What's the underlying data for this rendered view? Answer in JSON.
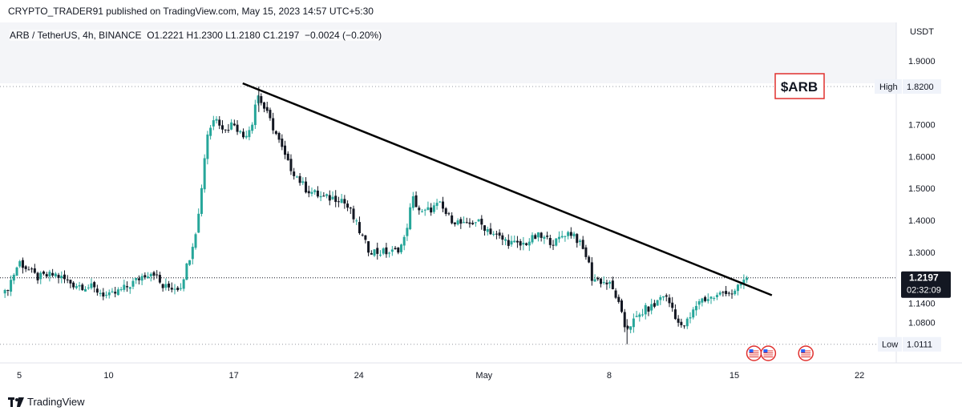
{
  "header": {
    "published_text": "CRYPTO_TRADER91 published on TradingView.com, May 15, 2023 14:57 UTC+5:30"
  },
  "symbol": {
    "pair": "ARB / TetherUS, 4h, BINANCE",
    "ohlc": "O1.2221  H1.2300  L1.2180  C1.2197",
    "change": "−0.0024 (−0.20%)"
  },
  "annotation": {
    "ticker_label": "$ARB",
    "color": "#e0302e"
  },
  "axis": {
    "currency": "USDT",
    "high_label": "High",
    "low_label": "Low"
  },
  "footer": {
    "logo_text": "TradingView",
    "logo_icon": "tradingview-logo-icon"
  },
  "chart_data": {
    "type": "candlestick",
    "timeframe": "4h",
    "ylim": [
      1.0,
      1.9
    ],
    "y_ticks": [
      {
        "value": 1.9,
        "label": "1.9000"
      },
      {
        "value": 1.7,
        "label": "1.7000"
      },
      {
        "value": 1.6,
        "label": "1.6000"
      },
      {
        "value": 1.5,
        "label": "1.5000"
      },
      {
        "value": 1.4,
        "label": "1.4000"
      },
      {
        "value": 1.3,
        "label": "1.3000"
      },
      {
        "value": 1.14,
        "label": "1.1400"
      },
      {
        "value": 1.08,
        "label": "1.0800"
      }
    ],
    "x_ticks": [
      {
        "day": 5,
        "label": "5"
      },
      {
        "day": 10,
        "label": "10"
      },
      {
        "day": 17,
        "label": "17"
      },
      {
        "day": 24,
        "label": "24"
      },
      {
        "day": 31,
        "label": "May"
      },
      {
        "day": 38,
        "label": "8"
      },
      {
        "day": 45,
        "label": "15"
      },
      {
        "day": 52,
        "label": "22"
      }
    ],
    "high": {
      "value": 1.82,
      "label": "1.8200"
    },
    "low": {
      "value": 1.0111,
      "label": "1.0111"
    },
    "last": {
      "value": 1.2197,
      "label": "1.2197",
      "countdown": "02:32:09"
    },
    "trendline": {
      "from": {
        "day": 17.5,
        "price": 1.83
      },
      "to": {
        "day": 47.1,
        "price": 1.165
      }
    },
    "event_markers": [
      {
        "day": 46.1,
        "icon": "us-flag-icon"
      },
      {
        "day": 46.9,
        "icon": "us-flag-icon"
      },
      {
        "day": 49.0,
        "icon": "us-flag-icon"
      }
    ],
    "colors": {
      "up": "#26a69a",
      "down": "#131722",
      "trendline": "#000000",
      "label_bg": "#131722"
    },
    "price_path": [
      [
        4.2,
        1.17
      ],
      [
        5.0,
        1.27
      ],
      [
        6.0,
        1.22
      ],
      [
        7.0,
        1.23
      ],
      [
        8.0,
        1.2
      ],
      [
        9.0,
        1.19
      ],
      [
        10.0,
        1.16
      ],
      [
        11.0,
        1.19
      ],
      [
        12.0,
        1.23
      ],
      [
        12.5,
        1.24
      ],
      [
        13.0,
        1.19
      ],
      [
        14.0,
        1.19
      ],
      [
        14.5,
        1.28
      ],
      [
        15.0,
        1.4
      ],
      [
        15.5,
        1.67
      ],
      [
        16.0,
        1.73
      ],
      [
        16.5,
        1.68
      ],
      [
        17.0,
        1.71
      ],
      [
        17.5,
        1.66
      ],
      [
        18.0,
        1.7
      ],
      [
        18.3,
        1.8
      ],
      [
        18.8,
        1.74
      ],
      [
        19.3,
        1.68
      ],
      [
        20.0,
        1.58
      ],
      [
        21.0,
        1.5
      ],
      [
        22.0,
        1.47
      ],
      [
        23.0,
        1.47
      ],
      [
        23.5,
        1.43
      ],
      [
        24.5,
        1.31
      ],
      [
        25.0,
        1.3
      ],
      [
        26.0,
        1.3
      ],
      [
        26.5,
        1.33
      ],
      [
        27.0,
        1.47
      ],
      [
        27.5,
        1.42
      ],
      [
        28.5,
        1.45
      ],
      [
        29.0,
        1.41
      ],
      [
        30.0,
        1.38
      ],
      [
        30.5,
        1.4
      ],
      [
        31.0,
        1.38
      ],
      [
        32.0,
        1.34
      ],
      [
        33.0,
        1.32
      ],
      [
        34.0,
        1.35
      ],
      [
        35.0,
        1.33
      ],
      [
        35.5,
        1.36
      ],
      [
        36.0,
        1.36
      ],
      [
        36.8,
        1.28
      ],
      [
        37.0,
        1.22
      ],
      [
        37.5,
        1.21
      ],
      [
        38.0,
        1.2
      ],
      [
        38.4,
        1.16
      ],
      [
        38.9,
        1.06
      ],
      [
        39.5,
        1.09
      ],
      [
        40.0,
        1.12
      ],
      [
        40.5,
        1.13
      ],
      [
        41.0,
        1.17
      ],
      [
        41.5,
        1.13
      ],
      [
        42.0,
        1.06
      ],
      [
        42.5,
        1.09
      ],
      [
        43.0,
        1.15
      ],
      [
        44.0,
        1.16
      ],
      [
        44.5,
        1.18
      ],
      [
        45.0,
        1.17
      ],
      [
        45.5,
        1.21
      ],
      [
        45.7,
        1.2197
      ]
    ]
  }
}
